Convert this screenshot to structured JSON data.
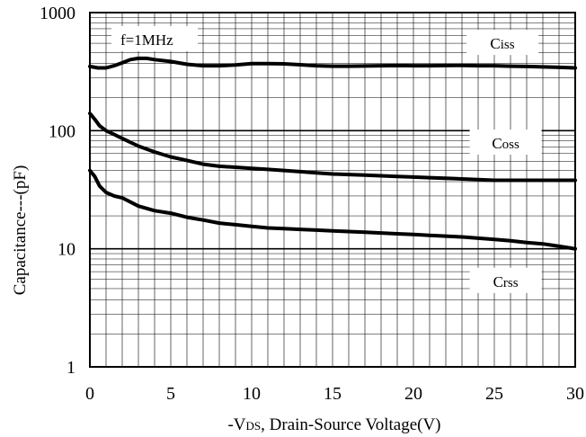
{
  "chart_data": {
    "type": "line",
    "title": "",
    "xlabel": "-VDS, Drain-Source Voltage(V)",
    "xlabel_prefix": "-V",
    "xlabel_sub": "DS",
    "xlabel_rest": ", Drain-Source Voltage(V)",
    "ylabel": "Capacitance---(pF)",
    "xlim": [
      0,
      30
    ],
    "ylim": [
      1,
      1000
    ],
    "yscale": "log",
    "grid": true,
    "legend": "none",
    "x_ticks": [
      "0",
      "5",
      "10",
      "15",
      "20",
      "25",
      "30"
    ],
    "y_ticks": [
      "1",
      "10",
      "100",
      "1000"
    ],
    "annotation": "f=1MHz",
    "series": [
      {
        "name": "Ciss",
        "label_main": "C",
        "label_sub": "iss",
        "label_x": 25.5,
        "label_y": 560,
        "x": [
          0,
          0.5,
          1,
          1.5,
          2,
          2.5,
          3,
          3.5,
          4,
          5,
          6,
          7,
          8,
          9,
          10,
          11,
          12,
          13,
          14,
          15,
          16,
          17,
          18,
          19,
          20,
          21,
          22,
          23,
          24,
          25,
          26,
          27,
          28,
          29,
          30
        ],
        "y": [
          350,
          340,
          340,
          355,
          375,
          400,
          410,
          410,
          400,
          385,
          365,
          355,
          355,
          360,
          370,
          370,
          368,
          362,
          355,
          352,
          352,
          353,
          355,
          356,
          355,
          355,
          356,
          357,
          355,
          355,
          352,
          350,
          347,
          344,
          340
        ]
      },
      {
        "name": "Coss",
        "label_main": "C",
        "label_sub": "oss",
        "label_x": 25.7,
        "label_y": 80,
        "x": [
          0,
          0.3,
          0.6,
          1,
          1.5,
          2,
          3,
          4,
          5,
          6,
          7,
          8,
          9,
          10,
          11,
          12,
          13,
          14,
          15,
          16,
          17,
          18,
          19,
          20,
          21,
          22,
          23,
          24,
          25,
          26,
          27,
          28,
          29,
          30
        ],
        "y": [
          140,
          125,
          110,
          100,
          93,
          86,
          74,
          66,
          60,
          56,
          52,
          50,
          49,
          48,
          47,
          46,
          45,
          44,
          43,
          42.5,
          42,
          41.5,
          41,
          40.5,
          40,
          39.5,
          39,
          38.5,
          38,
          38,
          38,
          38,
          38,
          38
        ]
      },
      {
        "name": "Crss",
        "label_main": "C",
        "label_sub": "rss",
        "label_x": 25.7,
        "label_y": 5.4,
        "x": [
          0,
          0.3,
          0.6,
          1,
          1.5,
          2,
          3,
          4,
          5,
          6,
          7,
          8,
          9,
          10,
          11,
          12,
          13,
          14,
          15,
          16,
          17,
          18,
          19,
          20,
          21,
          22,
          23,
          24,
          25,
          26,
          27,
          28,
          29,
          30
        ],
        "y": [
          46,
          41,
          34,
          30,
          28,
          27,
          23,
          21,
          20,
          18.5,
          17.5,
          16.5,
          16,
          15.5,
          15,
          14.8,
          14.6,
          14.4,
          14.2,
          14,
          13.8,
          13.6,
          13.4,
          13.2,
          13,
          12.8,
          12.6,
          12.3,
          12,
          11.7,
          11.3,
          11,
          10.5,
          10
        ]
      }
    ]
  }
}
